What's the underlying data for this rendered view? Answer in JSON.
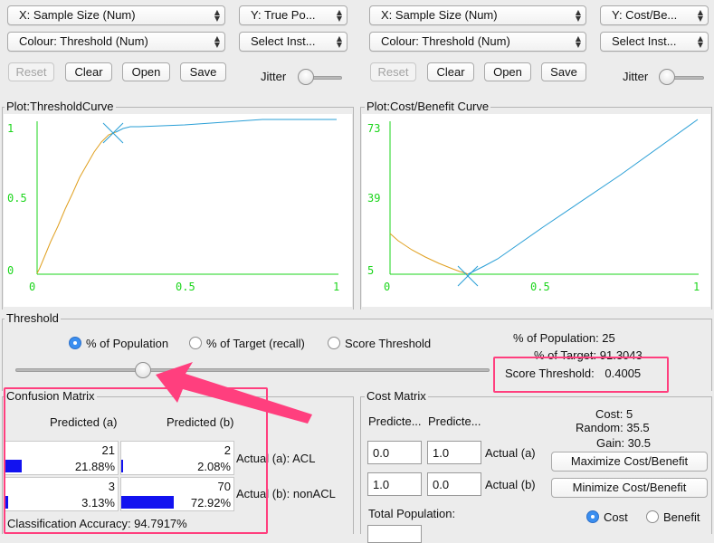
{
  "left_plot": {
    "x_combo": "X: Sample Size (Num)",
    "y_combo": "Y: True Po...",
    "colour_combo": "Colour: Threshold (Num)",
    "instance_combo": "Select Inst...",
    "buttons": {
      "reset": "Reset",
      "clear": "Clear",
      "open": "Open",
      "save": "Save"
    },
    "jitter_label": "Jitter",
    "title": "Plot:ThresholdCurve",
    "y_ticks": [
      "1",
      "0.5",
      "0"
    ],
    "x_ticks": [
      "0",
      "0.5",
      "1"
    ]
  },
  "right_plot": {
    "x_combo": "X: Sample Size (Num)",
    "y_combo": "Y: Cost/Be...",
    "colour_combo": "Colour: Threshold (Num)",
    "instance_combo": "Select Inst...",
    "buttons": {
      "reset": "Reset",
      "clear": "Clear",
      "open": "Open",
      "save": "Save"
    },
    "jitter_label": "Jitter",
    "title": "Plot:Cost/Benefit Curve",
    "y_ticks": [
      "73",
      "39",
      "5"
    ],
    "x_ticks": [
      "0",
      "0.5",
      "1"
    ]
  },
  "threshold": {
    "section_label": "Threshold",
    "options": [
      "% of Population",
      "% of Target (recall)",
      "Score Threshold"
    ],
    "selected": "% of Population",
    "population_line": "% of Population: 25",
    "target_line": "% of Target: 91.3043",
    "score_line_label": "Score Threshold:",
    "score_line_value": "0.4005",
    "slider_fraction": 0.27
  },
  "confusion": {
    "title": "Confusion Matrix",
    "col_headers": [
      "Predicted (a)",
      "Predicted (b)"
    ],
    "rows": [
      {
        "label": "Actual (a): ACL",
        "cells": [
          {
            "count": "21",
            "pct": "21.88%",
            "fraction": 0.2188
          },
          {
            "count": "2",
            "pct": "2.08%",
            "fraction": 0.0208
          }
        ]
      },
      {
        "label": "Actual (b):  nonACL",
        "cells": [
          {
            "count": "3",
            "pct": "3.13%",
            "fraction": 0.0313
          },
          {
            "count": "70",
            "pct": "72.92%",
            "fraction": 0.7292
          }
        ]
      }
    ],
    "accuracy": "Classification Accuracy:  94.7917%"
  },
  "cost": {
    "title": "Cost Matrix",
    "col_headers": [
      "Predicte...",
      "Predicte..."
    ],
    "rows": [
      {
        "label": "Actual (a)",
        "values": [
          "0.0",
          "1.0"
        ]
      },
      {
        "label": "Actual (b)",
        "values": [
          "1.0",
          "0.0"
        ]
      }
    ],
    "cost_line": "Cost: 5",
    "random_line": "Random: 35.5",
    "gain_line": "Gain: 30.5",
    "maximize": "Maximize Cost/Benefit",
    "minimize": "Minimize Cost/Benefit",
    "total_population_label": "Total Population:",
    "radio_options": [
      "Cost",
      "Benefit"
    ],
    "radio_selected": "Cost"
  },
  "colors": {
    "annotation": "#ff3f7e",
    "axis": "#1bd51b",
    "curve_low": "#e0a020",
    "curve_high": "#2a9fd6",
    "bar": "#1212f0"
  }
}
